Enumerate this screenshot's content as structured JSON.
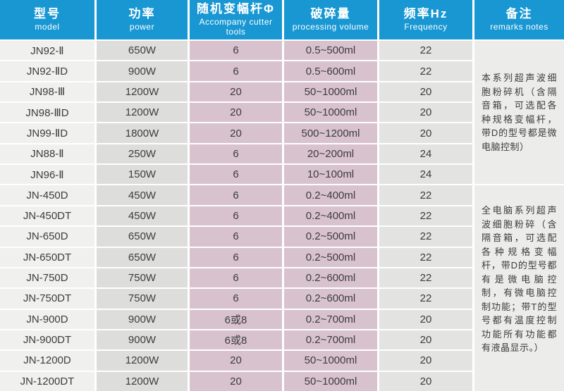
{
  "table": {
    "columns": [
      {
        "zh": "型号",
        "en": "model"
      },
      {
        "zh": "功率",
        "en": "power"
      },
      {
        "zh": "随机变幅杆Φ",
        "en": "Accompany cutter tools"
      },
      {
        "zh": "破碎量",
        "en": "processing volume"
      },
      {
        "zh": "频率Hz",
        "en": "Frequency"
      },
      {
        "zh": "备注",
        "en": "remarks notes"
      }
    ],
    "rows": [
      {
        "model": "JN92-Ⅱ",
        "power": "650W",
        "cutter": "6",
        "volume": "0.5~500ml",
        "freq": "22"
      },
      {
        "model": "JN92-ⅡD",
        "power": "900W",
        "cutter": "6",
        "volume": "0.5~600ml",
        "freq": "22"
      },
      {
        "model": "JN98-Ⅲ",
        "power": "1200W",
        "cutter": "20",
        "volume": "50~1000ml",
        "freq": "20"
      },
      {
        "model": "JN98-ⅢD",
        "power": "1200W",
        "cutter": "20",
        "volume": "50~1000ml",
        "freq": "20"
      },
      {
        "model": "JN99-ⅡD",
        "power": "1800W",
        "cutter": "20",
        "volume": "500~1200ml",
        "freq": "20"
      },
      {
        "model": "JN88-Ⅱ",
        "power": "250W",
        "cutter": "6",
        "volume": "20~200ml",
        "freq": "24"
      },
      {
        "model": "JN96-Ⅱ",
        "power": "150W",
        "cutter": "6",
        "volume": "10~100ml",
        "freq": "24"
      },
      {
        "model": "JN-450D",
        "power": "450W",
        "cutter": "6",
        "volume": "0.2~400ml",
        "freq": "22"
      },
      {
        "model": "JN-450DT",
        "power": "450W",
        "cutter": "6",
        "volume": "0.2~400ml",
        "freq": "22"
      },
      {
        "model": "JN-650D",
        "power": "650W",
        "cutter": "6",
        "volume": "0.2~500ml",
        "freq": "22"
      },
      {
        "model": "JN-650DT",
        "power": "650W",
        "cutter": "6",
        "volume": "0.2~500ml",
        "freq": "22"
      },
      {
        "model": "JN-750D",
        "power": "750W",
        "cutter": "6",
        "volume": "0.2~600ml",
        "freq": "22"
      },
      {
        "model": "JN-750DT",
        "power": "750W",
        "cutter": "6",
        "volume": "0.2~600ml",
        "freq": "22"
      },
      {
        "model": "JN-900D",
        "power": "900W",
        "cutter": "6或8",
        "volume": "0.2~700ml",
        "freq": "20"
      },
      {
        "model": "JN-900DT",
        "power": "900W",
        "cutter": "6或8",
        "volume": "0.2~700ml",
        "freq": "20"
      },
      {
        "model": "JN-1200D",
        "power": "1200W",
        "cutter": "20",
        "volume": "50~1000ml",
        "freq": "20"
      },
      {
        "model": "JN-1200DT",
        "power": "1200W",
        "cutter": "20",
        "volume": "50~1000ml",
        "freq": "20"
      }
    ],
    "remarks": [
      "本系列超声波细胞粉碎机（含隔音箱，可选配各种规格变幅杆，带D的型号都是微电脑控制）",
      "全电脑系列超声波细胞粉碎（含隔音箱，可选配各种规格变幅杆，带D的型号都有是微电脑控制，有微电脑控制功能；带T的型号都有温度控制功能所有功能都有液晶显示。）"
    ]
  },
  "colors": {
    "header_blue": "#1897d3",
    "pink_column": "#d8c2ce",
    "model_column": "#f0f0ee",
    "power_column": "#dddddc",
    "freq_column": "#e3e3e2",
    "remarks_column": "#ececeb",
    "separator": "#ffffff",
    "text": "#3c3c3c"
  }
}
